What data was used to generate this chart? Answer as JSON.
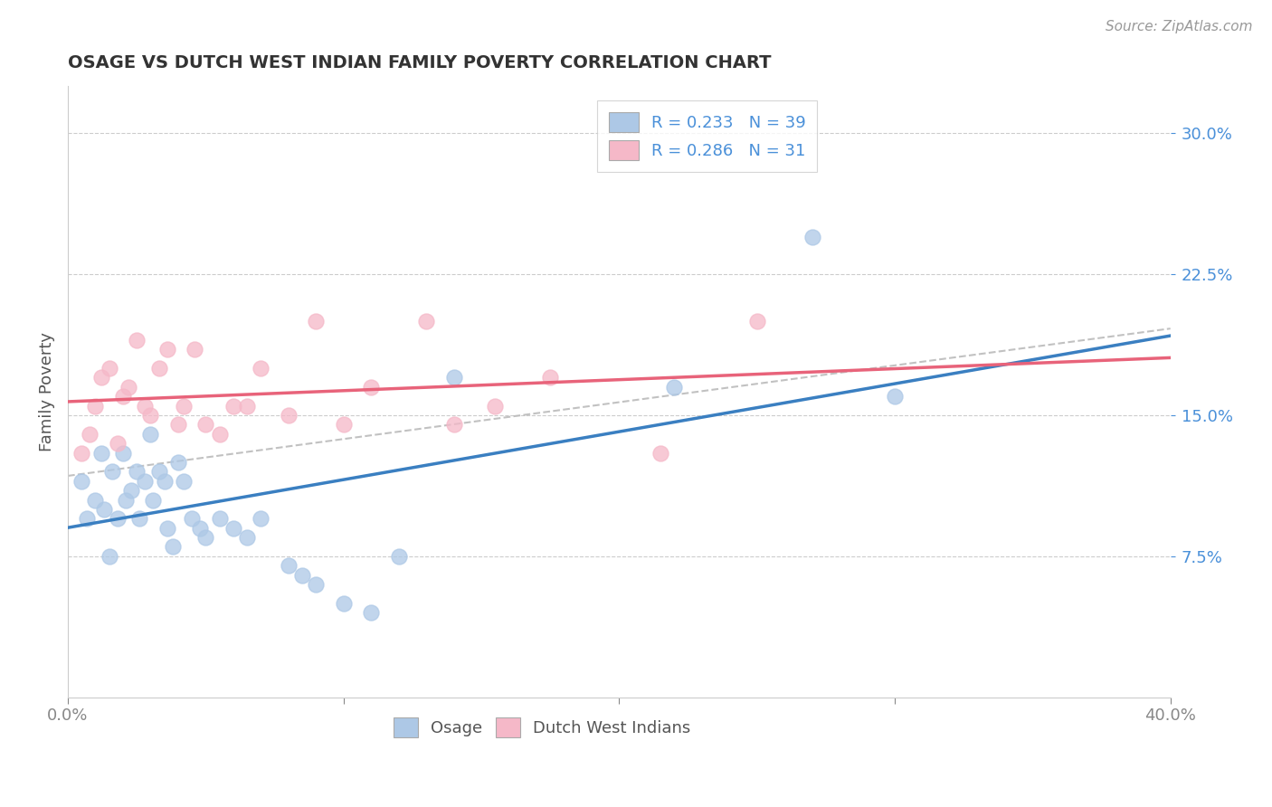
{
  "title": "OSAGE VS DUTCH WEST INDIAN FAMILY POVERTY CORRELATION CHART",
  "source": "Source: ZipAtlas.com",
  "ylabel": "Family Poverty",
  "xlim": [
    0.0,
    0.4
  ],
  "ylim": [
    0.0,
    0.325
  ],
  "xticks": [
    0.0,
    0.1,
    0.2,
    0.3,
    0.4
  ],
  "xticklabels": [
    "0.0%",
    "",
    "",
    "",
    "40.0%"
  ],
  "yticks": [
    0.075,
    0.15,
    0.225,
    0.3
  ],
  "yticklabels": [
    "7.5%",
    "15.0%",
    "22.5%",
    "30.0%"
  ],
  "osage_color": "#adc8e6",
  "dutch_color": "#f5b8c8",
  "osage_line_color": "#3a7fc1",
  "dutch_line_color": "#e8637a",
  "trend_line_color": "#bbbbbb",
  "legend_r_osage": "R = 0.233",
  "legend_n_osage": "N = 39",
  "legend_r_dutch": "R = 0.286",
  "legend_n_dutch": "N = 31",
  "osage_x": [
    0.005,
    0.007,
    0.01,
    0.012,
    0.013,
    0.015,
    0.016,
    0.018,
    0.02,
    0.021,
    0.023,
    0.025,
    0.026,
    0.028,
    0.03,
    0.031,
    0.033,
    0.035,
    0.036,
    0.038,
    0.04,
    0.042,
    0.045,
    0.048,
    0.05,
    0.055,
    0.06,
    0.065,
    0.07,
    0.08,
    0.085,
    0.09,
    0.1,
    0.11,
    0.12,
    0.14,
    0.22,
    0.27,
    0.3
  ],
  "osage_y": [
    0.115,
    0.095,
    0.105,
    0.13,
    0.1,
    0.075,
    0.12,
    0.095,
    0.13,
    0.105,
    0.11,
    0.12,
    0.095,
    0.115,
    0.14,
    0.105,
    0.12,
    0.115,
    0.09,
    0.08,
    0.125,
    0.115,
    0.095,
    0.09,
    0.085,
    0.095,
    0.09,
    0.085,
    0.095,
    0.07,
    0.065,
    0.06,
    0.05,
    0.045,
    0.075,
    0.17,
    0.165,
    0.245,
    0.16
  ],
  "dutch_x": [
    0.005,
    0.008,
    0.01,
    0.012,
    0.015,
    0.018,
    0.02,
    0.022,
    0.025,
    0.028,
    0.03,
    0.033,
    0.036,
    0.04,
    0.042,
    0.046,
    0.05,
    0.055,
    0.06,
    0.065,
    0.07,
    0.08,
    0.09,
    0.1,
    0.11,
    0.13,
    0.14,
    0.155,
    0.175,
    0.215,
    0.25
  ],
  "dutch_y": [
    0.13,
    0.14,
    0.155,
    0.17,
    0.175,
    0.135,
    0.16,
    0.165,
    0.19,
    0.155,
    0.15,
    0.175,
    0.185,
    0.145,
    0.155,
    0.185,
    0.145,
    0.14,
    0.155,
    0.155,
    0.175,
    0.15,
    0.2,
    0.145,
    0.165,
    0.2,
    0.145,
    0.155,
    0.17,
    0.13,
    0.2
  ],
  "background_color": "#ffffff",
  "grid_color": "#cccccc",
  "label_color": "#555555",
  "tick_color_y": "#4a90d9",
  "tick_color_x": "#888888"
}
